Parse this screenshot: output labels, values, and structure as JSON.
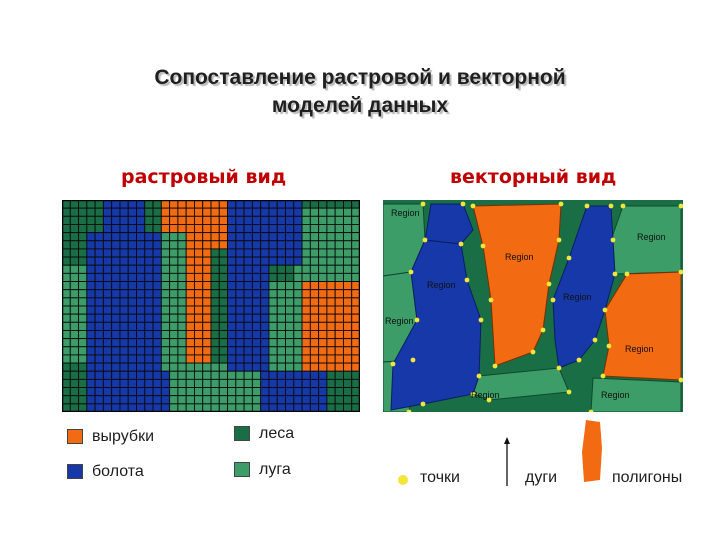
{
  "title": {
    "line1": "Сопоставление растровой и векторной",
    "line2": "моделей данных"
  },
  "raster": {
    "heading": "растровый вид"
  },
  "vector": {
    "heading": "векторный вид",
    "region_label": "Region"
  },
  "colors": {
    "orange": "#f26a12",
    "blue": "#1638a8",
    "dark_green": "#196e45",
    "light_green": "#3c9d68",
    "node_yellow": "#f2e63a"
  },
  "legend": {
    "cuttings": "вырубки",
    "forests": "леса",
    "swamps": "болота",
    "meadows": "луга",
    "points": "точки",
    "arcs": "дуги",
    "polygons": "полигоны"
  }
}
